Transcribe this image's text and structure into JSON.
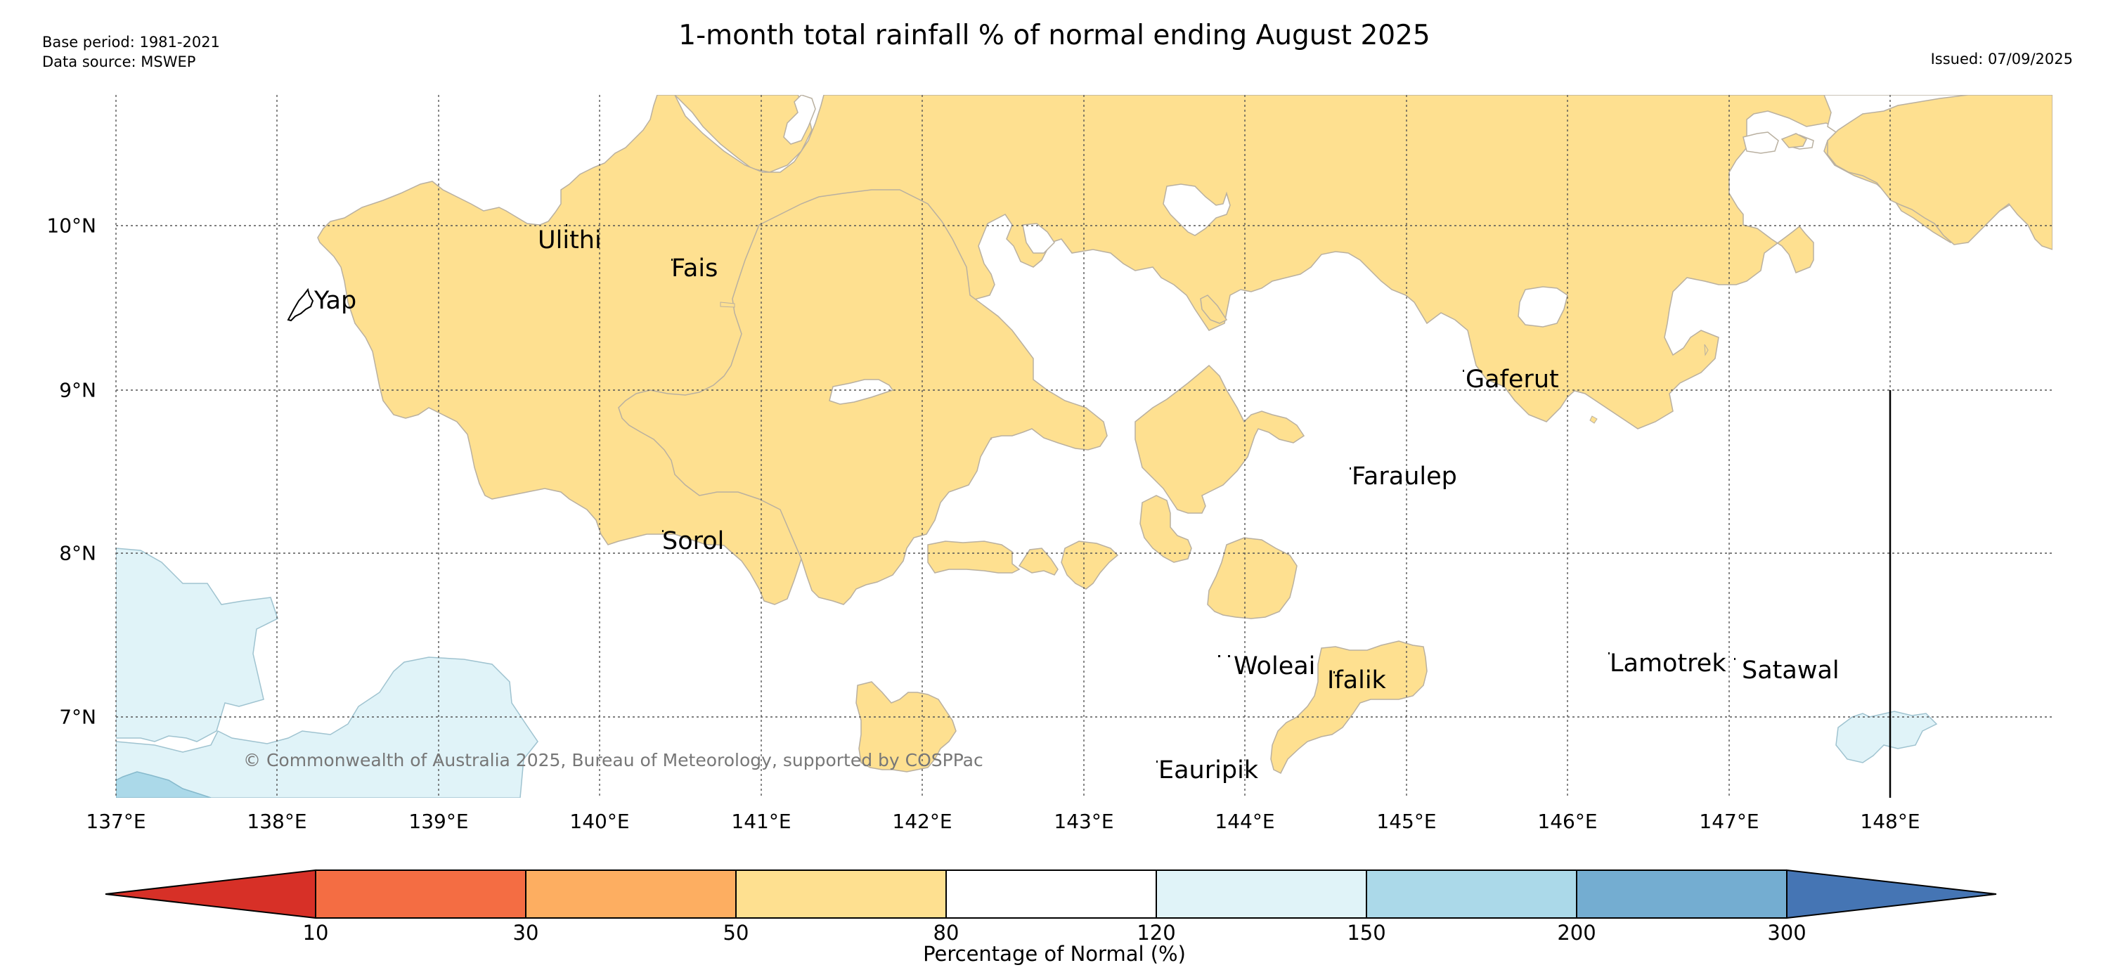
{
  "header": {
    "title": "1-month total rainfall % of normal ending August 2025",
    "base_period": "Base period: 1981-2021",
    "data_source": "Data source: MSWEP",
    "issued": "Issued: 07/09/2025"
  },
  "map": {
    "longitude_labels": [
      "137°E",
      "138°E",
      "139°E",
      "140°E",
      "141°E",
      "142°E",
      "143°E",
      "144°E",
      "145°E",
      "146°E",
      "147°E",
      "148°E"
    ],
    "latitude_labels": [
      "10°N",
      "9°N",
      "8°N",
      "7°N"
    ],
    "places": {
      "yap": "Yap",
      "ulithi": "Ulithi",
      "fais": "Fais",
      "gaferut": "Gaferut",
      "faraulep": "Faraulep",
      "sorol": "Sorol",
      "woleai": "Woleai",
      "ifalik": "Ifalik",
      "lamotrek": "Lamotrek",
      "satawal": "Satawal",
      "eauripik": "Eauripik"
    },
    "copyright": "© Commonwealth of Australia 2025, Bureau of Meteorology, supported by COSPPac",
    "colors": {
      "above_normal_light": "#e0f3f8",
      "above_normal_mid": "#abd9e9",
      "below_normal_light": "#fee090"
    }
  },
  "colorbar": {
    "label": "Percentage of Normal (%)",
    "ticks": [
      "10",
      "30",
      "50",
      "80",
      "120",
      "150",
      "200",
      "300"
    ],
    "colors": [
      "#d73027",
      "#f46d43",
      "#fdae61",
      "#fee090",
      "#ffffff",
      "#e0f3f8",
      "#abd9e9",
      "#74add1",
      "#4575b4"
    ]
  }
}
